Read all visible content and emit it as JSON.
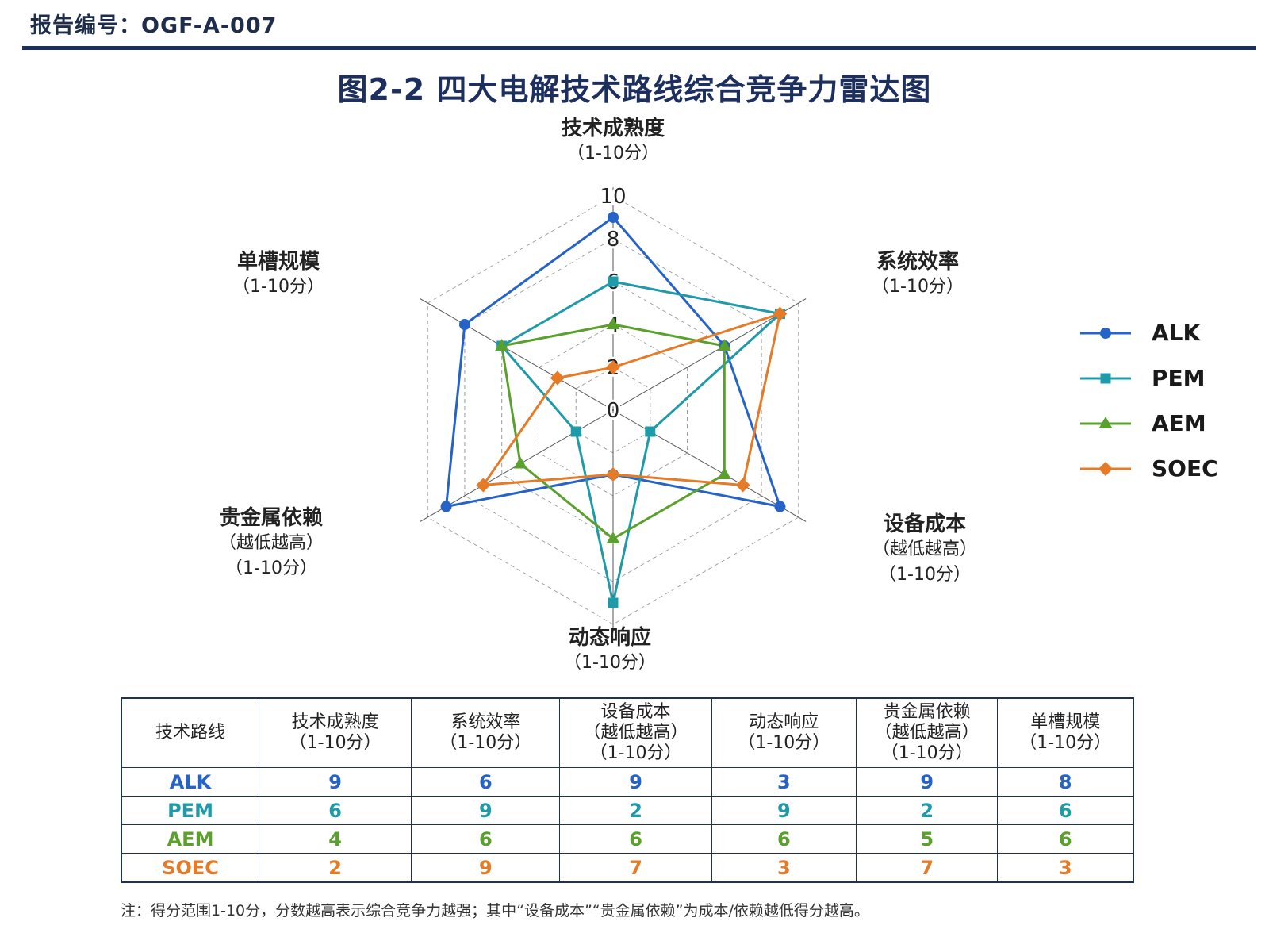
{
  "report_id": "报告编号：OGF-A-007",
  "title": "图2-2  四大电解技术路线综合竞争力雷达图",
  "chart_data": {
    "type": "radar",
    "title": "图2-2  四大电解技术路线综合竞争力雷达图",
    "axes": [
      {
        "name": "技术成熟度",
        "sub": [
          "（1-10分）"
        ]
      },
      {
        "name": "系统效率",
        "sub": [
          "（1-10分）"
        ]
      },
      {
        "name": "设备成本",
        "sub": [
          "（越低越高）",
          "（1-10分）"
        ]
      },
      {
        "name": "动态响应",
        "sub": [
          "（1-10分）"
        ]
      },
      {
        "name": "贵金属依赖",
        "sub": [
          "（越低越高）",
          "（1-10分）"
        ]
      },
      {
        "name": "单槽规模",
        "sub": [
          "（1-10分）"
        ]
      }
    ],
    "range": [
      0,
      10
    ],
    "ticks": [
      "0",
      "2",
      "4",
      "6",
      "8",
      "10"
    ],
    "tick_values": [
      0,
      2,
      4,
      6,
      8,
      10
    ],
    "legend_position": "right",
    "series": [
      {
        "name": "ALK",
        "color": "#2563c9",
        "marker": "circle",
        "values": [
          9,
          6,
          9,
          3,
          9,
          8
        ]
      },
      {
        "name": "PEM",
        "color": "#1f9aa8",
        "marker": "square",
        "values": [
          6,
          9,
          2,
          9,
          2,
          6
        ]
      },
      {
        "name": "AEM",
        "color": "#5aa02c",
        "marker": "triangle",
        "values": [
          4,
          6,
          6,
          6,
          5,
          6
        ]
      },
      {
        "name": "SOEC",
        "color": "#e57a27",
        "marker": "diamond",
        "values": [
          2,
          9,
          7,
          3,
          7,
          3
        ]
      }
    ]
  },
  "table": {
    "headers": [
      [
        "技术路线"
      ],
      [
        "技术成熟度",
        "（1-10分）"
      ],
      [
        "系统效率",
        "（1-10分）"
      ],
      [
        "设备成本",
        "（越低越高）",
        "（1-10分）"
      ],
      [
        "动态响应",
        "（1-10分）"
      ],
      [
        "贵金属依赖",
        "（越低越高）",
        "（1-10分）"
      ],
      [
        "单槽规模",
        "（1-10分）"
      ]
    ],
    "rows": [
      {
        "name": "ALK",
        "color": "#2563c9",
        "values": [
          "9",
          "6",
          "9",
          "3",
          "9",
          "8"
        ]
      },
      {
        "name": "PEM",
        "color": "#1f9aa8",
        "values": [
          "6",
          "9",
          "2",
          "9",
          "2",
          "6"
        ]
      },
      {
        "name": "AEM",
        "color": "#5aa02c",
        "values": [
          "4",
          "6",
          "6",
          "6",
          "5",
          "6"
        ]
      },
      {
        "name": "SOEC",
        "color": "#e57a27",
        "values": [
          "2",
          "9",
          "7",
          "3",
          "7",
          "3"
        ]
      }
    ]
  },
  "footnote": "注：得分范围1-10分，分数越高表示综合竞争力越强；其中“设备成本”“贵金属依赖”为成本/依赖越低得分越高。"
}
